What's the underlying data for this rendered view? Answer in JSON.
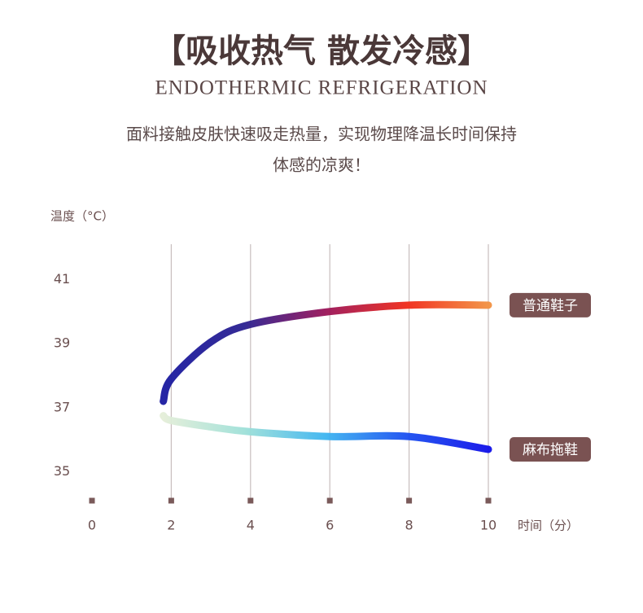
{
  "header": {
    "title": "【吸收热气 散发冷感】",
    "subtitle": "ENDOTHERMIC REFRIGERATION",
    "description": [
      "面料接触皮肤快速吸走热量，实现物理降温长时间保持",
      "体感的凉爽！"
    ]
  },
  "chart_data": {
    "type": "line",
    "ylabel": "温度（°C）",
    "xlabel": "时间（分）",
    "xlim": [
      0,
      10
    ],
    "xticks": [
      0,
      2,
      4,
      6,
      8,
      10
    ],
    "ylim": [
      34.1,
      42.1
    ],
    "yticks": [
      35,
      37,
      39,
      41
    ],
    "x": [
      1.8,
      2,
      3,
      4,
      6,
      8,
      10
    ],
    "grid": true,
    "series": [
      {
        "name": "普通鞋子",
        "colors": [
          "#1a1aa0",
          "#2a2090",
          "#9a1458",
          "#f02a18",
          "#f29040"
        ],
        "values": [
          37.2,
          37.9,
          39.05,
          39.6,
          40.0,
          40.2,
          40.2
        ]
      },
      {
        "name": "麻布拖鞋",
        "colors": [
          "#e4eed8",
          "#9ee0d8",
          "#3cb4f0",
          "#1a4ef0",
          "#1010e8"
        ],
        "values": [
          36.75,
          36.6,
          36.4,
          36.25,
          36.1,
          36.1,
          35.7
        ]
      }
    ]
  }
}
